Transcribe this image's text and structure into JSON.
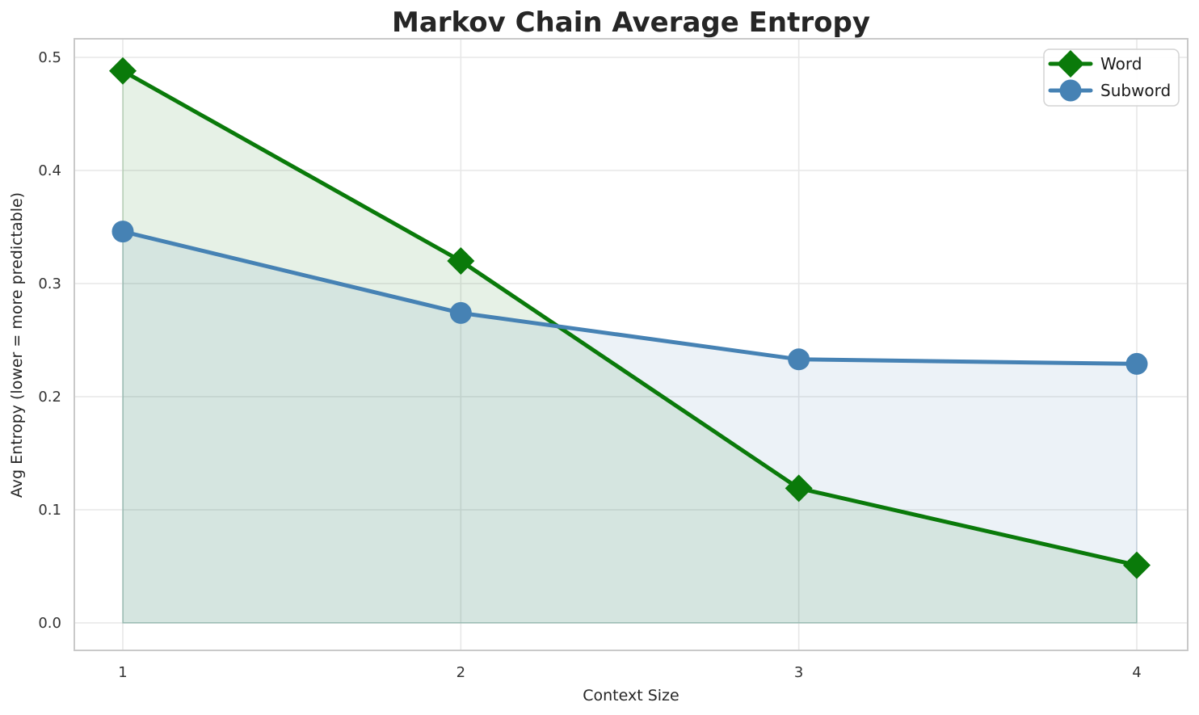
{
  "chart_data": {
    "type": "line",
    "title": "Markov Chain Average Entropy",
    "xlabel": "Context Size",
    "ylabel": "Avg Entropy (lower = more predictable)",
    "x": [
      1,
      2,
      3,
      4
    ],
    "x_tick_labels": [
      "1",
      "2",
      "3",
      "4"
    ],
    "y_ticks": [
      0.0,
      0.1,
      0.2,
      0.3,
      0.4,
      0.5
    ],
    "y_tick_labels": [
      "0.0",
      "0.1",
      "0.2",
      "0.3",
      "0.4",
      "0.5"
    ],
    "xlim": [
      0.85,
      4.15
    ],
    "ylim": [
      0.0,
      0.5
    ],
    "grid": true,
    "legend_position": "upper right",
    "series": [
      {
        "name": "Word",
        "color": "#0a7a0a",
        "marker": "diamond",
        "fill_opacity": 0.1,
        "values": [
          0.488,
          0.32,
          0.119,
          0.051
        ]
      },
      {
        "name": "Subword",
        "color": "#4682b4",
        "marker": "circle",
        "fill_opacity": 0.1,
        "values": [
          0.346,
          0.274,
          0.233,
          0.229
        ]
      }
    ]
  },
  "styles": {
    "title_color": "#262626",
    "label_color": "#262626",
    "tick_color": "#333333",
    "grid_color": "#e7e7e7",
    "spine_color": "#c9c9c9",
    "legend_border": "#d4d4d4",
    "legend_bg": "#ffffff",
    "legend_text_color": "#1a1a1a"
  }
}
